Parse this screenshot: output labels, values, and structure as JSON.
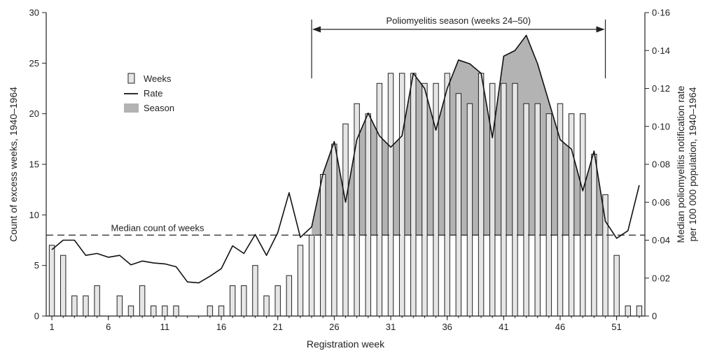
{
  "chart_data": {
    "type": "bar",
    "xlabel": "Registration week",
    "ylabel_left": "Count of excess weeks, 1940–1964",
    "ylabel_right_line1": "Median poliomyelitis notification rate",
    "ylabel_right_line2": "per 100 000 population, 1940–1964",
    "x_ticks": [
      "1",
      "6",
      "11",
      "16",
      "21",
      "26",
      "31",
      "36",
      "41",
      "46",
      "51"
    ],
    "y_left_ticks": [
      "0",
      "5",
      "10",
      "15",
      "20",
      "25",
      "30"
    ],
    "y_right_ticks": [
      "0",
      "0·02",
      "0·04",
      "0·06",
      "0·08",
      "0·10",
      "0·12",
      "0·14",
      "0·16"
    ],
    "ylim_left": [
      0,
      30
    ],
    "ylim_right": [
      0,
      0.16
    ],
    "xlim": [
      0.5,
      53.5
    ],
    "weeks": [
      1,
      2,
      3,
      4,
      5,
      6,
      7,
      8,
      9,
      10,
      11,
      12,
      13,
      14,
      15,
      16,
      17,
      18,
      19,
      20,
      21,
      22,
      23,
      24,
      25,
      26,
      27,
      28,
      29,
      30,
      31,
      32,
      33,
      34,
      35,
      36,
      37,
      38,
      39,
      40,
      41,
      42,
      43,
      44,
      45,
      46,
      47,
      48,
      49,
      50,
      51,
      52,
      53
    ],
    "series": [
      {
        "name": "Weeks",
        "type": "bar",
        "axis": "left",
        "values": [
          7,
          6,
          2,
          2,
          3,
          0,
          2,
          1,
          3,
          1,
          1,
          1,
          0,
          0,
          1,
          1,
          3,
          3,
          5,
          2,
          3,
          4,
          7,
          8,
          14,
          17,
          19,
          21,
          20,
          23,
          24,
          24,
          24,
          23,
          23,
          24,
          22,
          21,
          24,
          23,
          23,
          23,
          21,
          21,
          20,
          21,
          20,
          20,
          16,
          12,
          6,
          1,
          1
        ]
      },
      {
        "name": "Rate",
        "type": "line",
        "axis": "right",
        "values": [
          0.035,
          0.04,
          0.04,
          0.032,
          0.033,
          0.031,
          0.032,
          0.027,
          0.029,
          0.028,
          0.0275,
          0.026,
          0.018,
          0.0175,
          0.021,
          0.025,
          0.037,
          0.033,
          0.043,
          0.032,
          0.044,
          0.065,
          0.0415,
          0.047,
          0.075,
          0.092,
          0.06,
          0.093,
          0.107,
          0.095,
          0.089,
          0.095,
          0.128,
          0.12,
          0.098,
          0.12,
          0.135,
          0.133,
          0.128,
          0.094,
          0.137,
          0.14,
          0.148,
          0.133,
          0.113,
          0.093,
          0.088,
          0.066,
          0.087,
          0.05,
          0.041,
          0.045,
          0.069
        ]
      }
    ],
    "median_count": 8,
    "median_label": "Median count of weeks",
    "season": {
      "label": "Poliomyelitis season (weeks 24–50)",
      "start": 24,
      "end": 50
    },
    "legend": {
      "placement": "upper-left",
      "entries": [
        {
          "label": "Weeks",
          "kind": "bar"
        },
        {
          "label": "Rate",
          "kind": "line"
        },
        {
          "label": "Season",
          "kind": "area"
        }
      ]
    },
    "colors": {
      "bar_fill": "#e6e6e6",
      "bar_stroke": "#222222",
      "season_fill": "#b3b3b3",
      "line": "#111111",
      "axis": "#222222"
    },
    "grid": false
  }
}
